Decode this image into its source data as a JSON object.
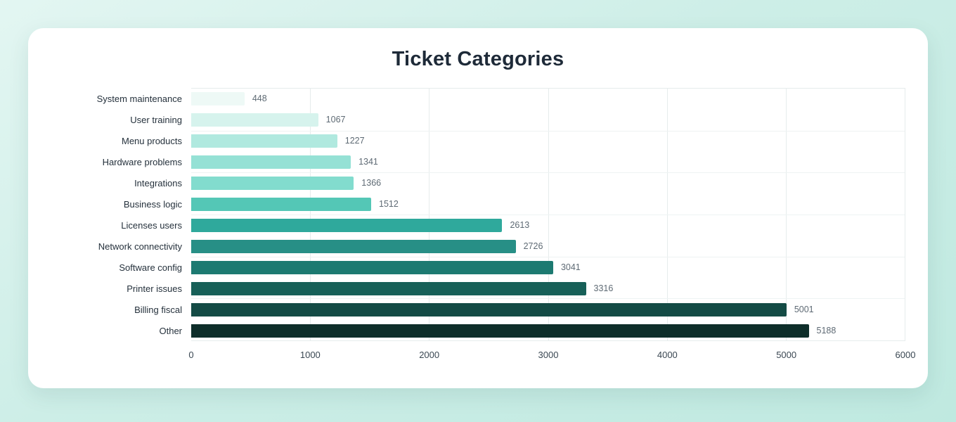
{
  "chart_data": {
    "type": "bar",
    "orientation": "horizontal",
    "title": "Ticket Categories",
    "categories": [
      "System maintenance",
      "User training",
      "Menu products",
      "Hardware problems",
      "Integrations",
      "Business logic",
      "Licenses users",
      "Network connectivity",
      "Software config",
      "Printer issues",
      "Billing fiscal",
      "Other"
    ],
    "values": [
      448,
      1067,
      1227,
      1341,
      1366,
      1512,
      2613,
      2726,
      3041,
      3316,
      5001,
      5188
    ],
    "value_labels": [
      "448",
      "1067",
      "1227",
      "1341",
      "1366",
      "1512",
      "2613",
      "2726",
      "3041",
      "3316",
      "5001",
      "5188"
    ],
    "bar_colors": [
      "#eef9f6",
      "#d6f3ed",
      "#b0e9df",
      "#95e1d5",
      "#82dcce",
      "#54c7b6",
      "#2fa99c",
      "#278f86",
      "#1d7a71",
      "#176058",
      "#144b45",
      "#0e2e2a"
    ],
    "xlabel": "",
    "ylabel": "",
    "xlim": [
      0,
      6000
    ],
    "x_ticks": [
      "0",
      "1000",
      "2000",
      "3000",
      "4000",
      "5000",
      "6000"
    ],
    "grid": true,
    "legend": "none"
  }
}
